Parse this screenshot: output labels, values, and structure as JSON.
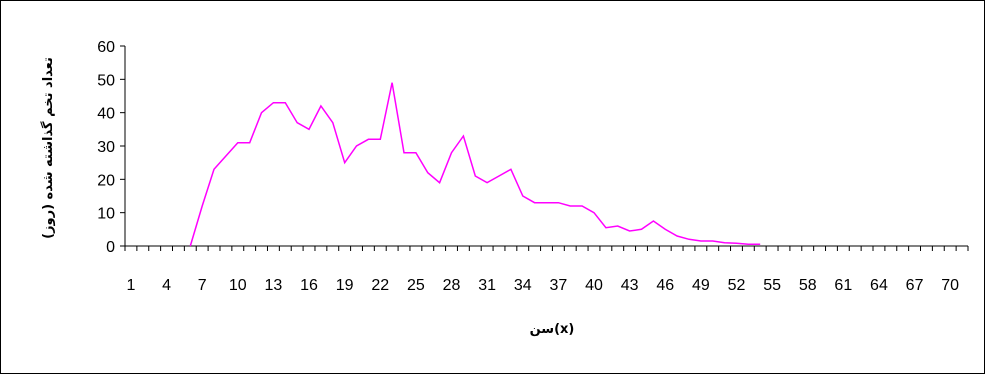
{
  "chart_data": {
    "type": "line",
    "xlabel": "سن(x)",
    "ylabel": "تعداد تخم گذاشته شده (روز)",
    "ylim": [
      0,
      60
    ],
    "y_ticks": [
      0,
      10,
      20,
      30,
      40,
      50,
      60
    ],
    "x_tick_labels": [
      "1",
      "4",
      "7",
      "10",
      "13",
      "16",
      "19",
      "22",
      "25",
      "28",
      "31",
      "34",
      "37",
      "40",
      "43",
      "46",
      "49",
      "52",
      "55",
      "58",
      "61",
      "64",
      "67",
      "70"
    ],
    "grid": false,
    "line_color": "#ff00ff",
    "series": [
      {
        "x": [
          6,
          7,
          8,
          9,
          10,
          11,
          12,
          13,
          14,
          15,
          16,
          17,
          18,
          19,
          20,
          21,
          22,
          23,
          24,
          25,
          26,
          27,
          28,
          29,
          30,
          31,
          32,
          33,
          34,
          35,
          36,
          37,
          38,
          39,
          40,
          41,
          42,
          43,
          44,
          45,
          46,
          47,
          48,
          49,
          50,
          51,
          52,
          53,
          54
        ],
        "values": [
          0,
          12,
          23,
          27,
          31,
          31,
          40,
          43,
          43,
          37,
          35,
          42,
          37,
          25,
          30,
          32,
          32,
          49,
          28,
          28,
          22,
          19,
          28,
          33,
          21,
          19,
          21,
          23,
          15,
          13,
          13,
          13,
          12,
          12,
          10,
          5.5,
          6,
          4.5,
          5,
          7.5,
          5,
          3,
          2,
          1.5,
          1.5,
          1,
          0.8,
          0.5,
          0.5
        ]
      }
    ]
  }
}
